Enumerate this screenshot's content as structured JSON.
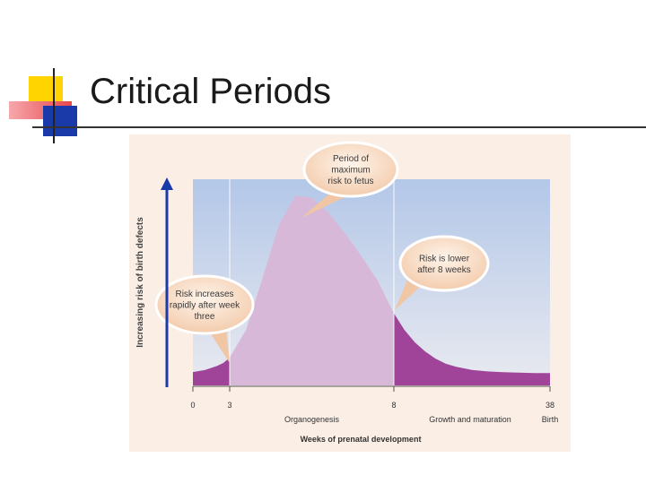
{
  "slide": {
    "title": "Critical Periods",
    "accent_colors": {
      "yellow": "#ffd400",
      "red": "#e8464d",
      "blue": "#1a3aaa",
      "rule": "#333333"
    }
  },
  "chart_data": {
    "type": "area",
    "title": "",
    "xlabel": "Weeks of prenatal development",
    "ylabel": "Increasing risk of birth defects",
    "x_ticks": [
      {
        "week": 0,
        "label": "0"
      },
      {
        "week": 3,
        "label": "3"
      },
      {
        "week": 8,
        "label": "8"
      },
      {
        "week": 38,
        "label": "38"
      }
    ],
    "tick_extra": {
      "week": 38,
      "label": "Birth"
    },
    "phase_labels": [
      {
        "label": "Organogenesis",
        "from_week": 3,
        "to_week": 8
      },
      {
        "label": "Growth and maturation",
        "from_week": 8,
        "to_week": 38
      }
    ],
    "ylim": [
      0,
      100
    ],
    "grid": false,
    "region_colors": {
      "low_risk": "#a04499",
      "organogenesis": "#d8b8d8",
      "background_top": "#b3c7e8",
      "background_bottom": "#e9eaf0",
      "callout": "#f6d3b8"
    },
    "risk_curve": {
      "x": [
        0,
        1,
        2,
        2.5,
        3,
        3.5,
        4,
        4.5,
        5,
        5.5,
        6,
        6.5,
        7,
        7.5,
        8,
        10,
        12,
        14,
        16,
        18,
        20,
        23,
        26,
        29,
        32,
        35,
        38
      ],
      "y": [
        6.5,
        7.5,
        9.5,
        11,
        13.5,
        27,
        52,
        78,
        92,
        91,
        84,
        74,
        63,
        51,
        35,
        27,
        21,
        16.5,
        13,
        10.5,
        9,
        7.5,
        6.8,
        6.4,
        6.2,
        6.0,
        6.0
      ]
    },
    "annotations": [
      {
        "text": [
          "Period of",
          "maximum",
          "risk to fetus"
        ],
        "anchor_week": 5,
        "anchor_y": 92
      },
      {
        "text": [
          "Risk is lower",
          "after 8 weeks"
        ],
        "anchor_week": 8,
        "anchor_y": 35
      },
      {
        "text": [
          "Risk increases",
          "rapidly after week",
          "three"
        ],
        "anchor_week": 3,
        "anchor_y": 13.5
      }
    ]
  }
}
